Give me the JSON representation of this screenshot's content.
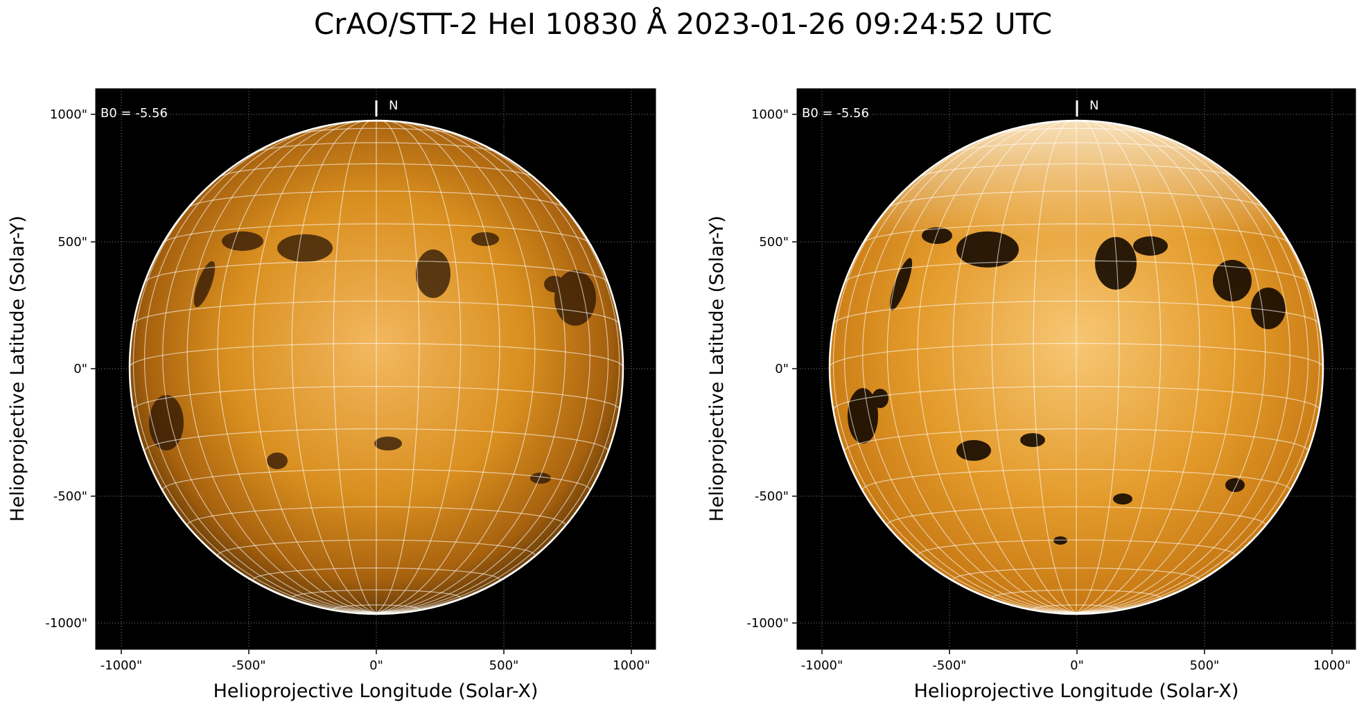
{
  "title": "CrAO/STT-2 HeI 10830 Å 2023-01-26 09:24:52 UTC",
  "panels": [
    {
      "id": "left",
      "variant": "standard",
      "xlabel": "Helioprojective Longitude (Solar-X)",
      "ylabel": "Helioprojective Latitude (Solar-Y)",
      "xticks": [
        "-1000\"",
        "-500\"",
        "0\"",
        "500\"",
        "1000\""
      ],
      "yticks": [
        "1000\"",
        "500\"",
        "0\"",
        "-500\"",
        "-1000\""
      ],
      "b0_label": "B0 = -5.56",
      "north_label": "N"
    },
    {
      "id": "right",
      "variant": "enhanced",
      "xlabel": "Helioprojective Longitude (Solar-X)",
      "ylabel": "Helioprojective Latitude (Solar-Y)",
      "xticks": [
        "-1000\"",
        "-500\"",
        "0\"",
        "500\"",
        "1000\""
      ],
      "yticks": [
        "1000\"",
        "500\"",
        "0\"",
        "-500\"",
        "-1000\""
      ],
      "b0_label": "B0 = -5.56",
      "north_label": "N"
    }
  ],
  "colors": {
    "sky": "#000000",
    "disk_center": "#f3b860",
    "disk_mid": "#d98f1f",
    "disk_limb": "#6b3f08",
    "enhanced_bright": "#fde9c4",
    "grid": "#ffffff",
    "filament": "#1a0d02"
  }
}
